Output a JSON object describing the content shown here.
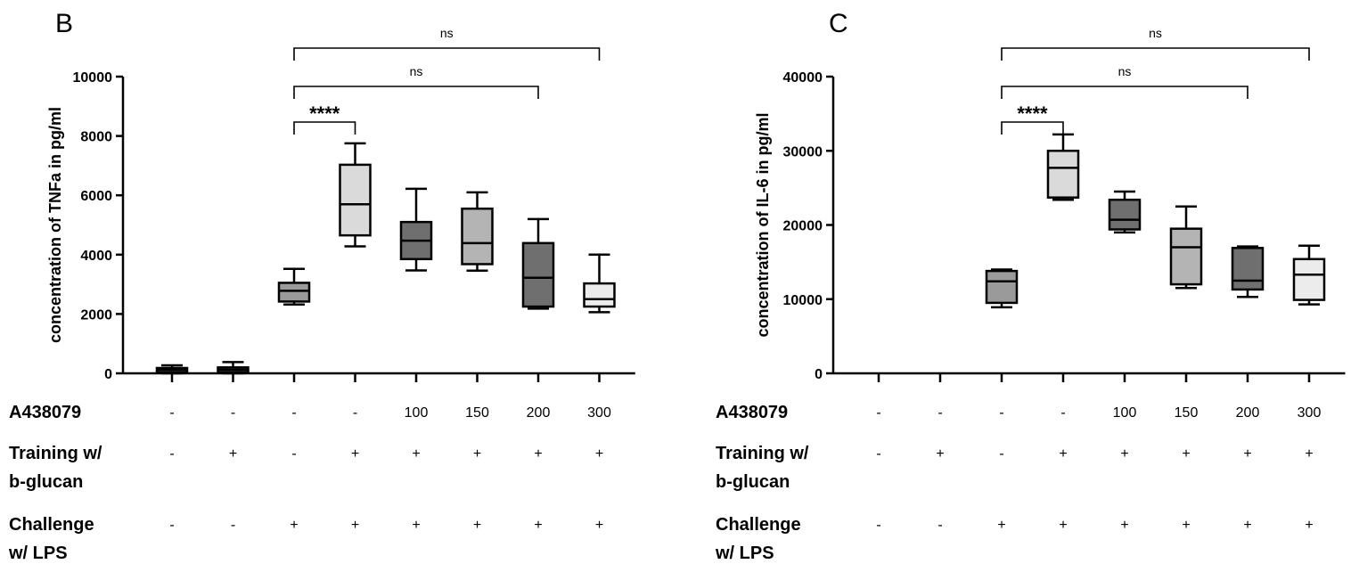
{
  "chart_data": [
    {
      "type": "box",
      "panel": "B",
      "ylabel": "concentration of TNFa in pg/ml",
      "ylim": [
        0,
        10000
      ],
      "yticks": [
        "0",
        "2000",
        "4000",
        "6000",
        "8000",
        "10000"
      ],
      "ytick_values": [
        0,
        2000,
        4000,
        6000,
        8000,
        10000
      ],
      "grid": false,
      "groups": [
        {
          "min": 0,
          "q1": 30,
          "median": 120,
          "q3": 180,
          "max": 270,
          "color": "#444444"
        },
        {
          "min": 0,
          "q1": 30,
          "median": 120,
          "q3": 200,
          "max": 380,
          "color": "#444444"
        },
        {
          "min": 2320,
          "q1": 2420,
          "median": 2780,
          "q3": 3050,
          "max": 3520,
          "color": "#9a9a9a"
        },
        {
          "min": 4280,
          "q1": 4650,
          "median": 5700,
          "q3": 7030,
          "max": 7750,
          "color": "#dadada"
        },
        {
          "min": 3470,
          "q1": 3850,
          "median": 4470,
          "q3": 5100,
          "max": 6220,
          "color": "#6f6f6f"
        },
        {
          "min": 3460,
          "q1": 3680,
          "median": 4390,
          "q3": 5550,
          "max": 6100,
          "color": "#b4b4b4"
        },
        {
          "min": 2180,
          "q1": 2250,
          "median": 3220,
          "q3": 4390,
          "max": 5200,
          "color": "#6f6f6f"
        },
        {
          "min": 2060,
          "q1": 2250,
          "median": 2500,
          "q3": 3030,
          "max": 4000,
          "color": "#ececec"
        }
      ],
      "comparisons": [
        {
          "from": 2,
          "to": 3,
          "label": "****",
          "level": 0
        },
        {
          "from": 2,
          "to": 6,
          "label": "ns",
          "level": 1
        },
        {
          "from": 2,
          "to": 7,
          "label": "ns",
          "level": 2
        }
      ]
    },
    {
      "type": "box",
      "panel": "C",
      "ylabel": "concentration of IL-6 in pg/ml",
      "ylim": [
        0,
        40000
      ],
      "yticks": [
        "0",
        "10000",
        "20000",
        "30000",
        "40000"
      ],
      "ytick_values": [
        0,
        10000,
        20000,
        30000,
        40000
      ],
      "grid": false,
      "groups": [
        null,
        null,
        {
          "min": 8900,
          "q1": 9500,
          "median": 12400,
          "q3": 13800,
          "max": 14000,
          "color": "#9a9a9a"
        },
        {
          "min": 23400,
          "q1": 23700,
          "median": 27700,
          "q3": 30000,
          "max": 32200,
          "color": "#dadada"
        },
        {
          "min": 19000,
          "q1": 19400,
          "median": 20700,
          "q3": 23400,
          "max": 24500,
          "color": "#6f6f6f"
        },
        {
          "min": 11500,
          "q1": 12000,
          "median": 17000,
          "q3": 19500,
          "max": 22500,
          "color": "#b4b4b4"
        },
        {
          "min": 10300,
          "q1": 11300,
          "median": 12500,
          "q3": 16900,
          "max": 17100,
          "color": "#6f6f6f"
        },
        {
          "min": 9300,
          "q1": 9900,
          "median": 13300,
          "q3": 15400,
          "max": 17200,
          "color": "#ececec"
        }
      ],
      "comparisons": [
        {
          "from": 2,
          "to": 3,
          "label": "****",
          "level": 0
        },
        {
          "from": 2,
          "to": 6,
          "label": "ns",
          "level": 1
        },
        {
          "from": 2,
          "to": 7,
          "label": "ns",
          "level": 2
        }
      ]
    }
  ],
  "conditions": {
    "rows": [
      {
        "label_lines": [
          "A438079"
        ],
        "values": [
          "-",
          "-",
          "-",
          "-",
          "100",
          "150",
          "200",
          "300"
        ]
      },
      {
        "label_lines": [
          "Training w/",
          "b-glucan"
        ],
        "values": [
          "-",
          "+",
          "-",
          "+",
          "+",
          "+",
          "+",
          "+"
        ]
      },
      {
        "label_lines": [
          "Challenge",
          "w/ LPS"
        ],
        "values": [
          "-",
          "-",
          "+",
          "+",
          "+",
          "+",
          "+",
          "+"
        ]
      }
    ]
  }
}
